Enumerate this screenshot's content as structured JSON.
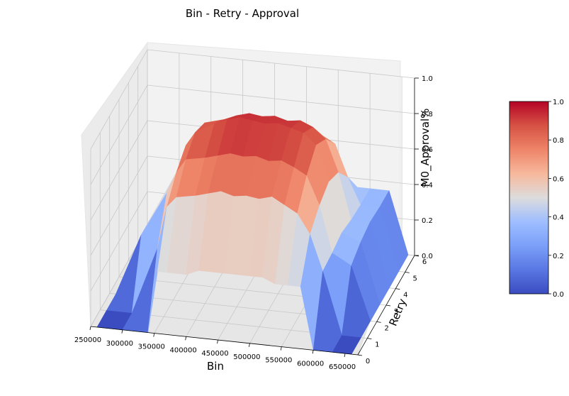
{
  "chart_data": {
    "type": "surface3d",
    "title": "Bin - Retry - Approval",
    "xlabel": "Bin",
    "ylabel": "Retry",
    "zlabel": "M0_Approval%",
    "xlim": [
      250000,
      670000
    ],
    "ylim": [
      0,
      6
    ],
    "zlim": [
      0,
      1
    ],
    "x_ticks": [
      250000,
      300000,
      350000,
      400000,
      450000,
      500000,
      550000,
      600000,
      650000
    ],
    "y_ticks": [
      0,
      1,
      2,
      3,
      4,
      5,
      6
    ],
    "z_ticks": [
      0.0,
      0.2,
      0.4,
      0.6,
      0.8,
      1.0
    ],
    "colormap": "coolwarm",
    "colorbar": {
      "ticks": [
        0.0,
        0.2,
        0.4,
        0.6,
        0.8,
        1.0
      ],
      "range": [
        0,
        1
      ]
    },
    "grid": true,
    "bins": [
      260000,
      300000,
      340000,
      355000,
      370000,
      400000,
      420000,
      440000,
      460000,
      480000,
      500000,
      520000,
      540000,
      560000,
      580000,
      600000,
      630000,
      660000
    ],
    "retries": [
      0,
      1,
      2,
      3,
      4,
      5,
      6
    ],
    "approval": [
      [
        0.0,
        0.0,
        0.0,
        0.0,
        0.0,
        0.0,
        0.0
      ],
      [
        0.0,
        0.0,
        0.35,
        0.35,
        0.35,
        0.0,
        0.0
      ],
      [
        0.0,
        0.38,
        0.6,
        0.62,
        0.58,
        0.35,
        0.0
      ],
      [
        0.35,
        0.62,
        0.72,
        0.78,
        0.74,
        0.62,
        0.35
      ],
      [
        0.35,
        0.68,
        0.8,
        0.86,
        0.82,
        0.7,
        0.38
      ],
      [
        0.35,
        0.7,
        0.82,
        0.92,
        0.85,
        0.72,
        0.38
      ],
      [
        0.38,
        0.72,
        0.84,
        0.95,
        0.88,
        0.75,
        0.4
      ],
      [
        0.38,
        0.74,
        0.86,
        0.97,
        0.9,
        0.76,
        0.4
      ],
      [
        0.38,
        0.72,
        0.85,
        0.96,
        0.89,
        0.74,
        0.4
      ],
      [
        0.38,
        0.73,
        0.86,
        0.95,
        0.9,
        0.75,
        0.4
      ],
      [
        0.38,
        0.72,
        0.84,
        0.96,
        0.88,
        0.74,
        0.4
      ],
      [
        0.38,
        0.74,
        0.85,
        0.94,
        0.89,
        0.76,
        0.4
      ],
      [
        0.35,
        0.7,
        0.82,
        0.92,
        0.86,
        0.72,
        0.38
      ],
      [
        0.35,
        0.66,
        0.78,
        0.86,
        0.8,
        0.68,
        0.36
      ],
      [
        0.35,
        0.55,
        0.62,
        0.66,
        0.62,
        0.5,
        0.35
      ],
      [
        0.0,
        0.35,
        0.36,
        0.38,
        0.36,
        0.35,
        0.35
      ],
      [
        0.0,
        0.0,
        0.3,
        0.34,
        0.36,
        0.35,
        0.35
      ],
      [
        0.0,
        0.0,
        0.0,
        0.0,
        0.0,
        0.0,
        0.0
      ]
    ]
  }
}
